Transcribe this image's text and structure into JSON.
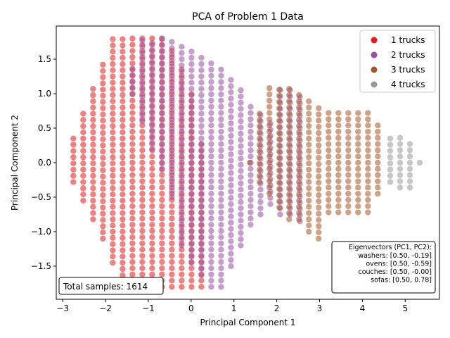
{
  "chart_data": {
    "type": "scatter",
    "title": "PCA of Problem 1 Data",
    "xlabel": "Principal Component 1",
    "ylabel": "Principal Component 2",
    "xlim": [
      -3.15,
      5.8
    ],
    "ylim": [
      -1.98,
      1.98
    ],
    "xticks": [
      "−3",
      "−2",
      "−1",
      "0",
      "1",
      "2",
      "3",
      "4",
      "5"
    ],
    "yticks": [
      "−1.5",
      "−1.0",
      "−0.5",
      "0.0",
      "0.5",
      "1.0",
      "1.5"
    ],
    "grid": false,
    "legend_position": "top-right",
    "alpha": 0.55,
    "series": [
      {
        "name": "1 trucks",
        "color": "#e41a1c",
        "x_range": [
          -2.75,
          0.25
        ],
        "x_step": 0.23,
        "column_y_ranges": [
          [
            -0.28,
            0.36
          ],
          [
            -0.55,
            0.72
          ],
          [
            -0.82,
            1.08
          ],
          [
            -1.1,
            1.45
          ],
          [
            -1.45,
            1.8
          ],
          [
            -1.63,
            1.8
          ],
          [
            -1.8,
            1.8
          ],
          [
            -1.8,
            1.8
          ],
          [
            -1.8,
            1.8
          ],
          [
            -1.8,
            1.8
          ],
          [
            -1.8,
            1.65
          ],
          [
            -1.8,
            1.36
          ],
          [
            -1.8,
            1.0
          ],
          [
            -1.8,
            0.28
          ]
        ]
      },
      {
        "name": "2 trucks",
        "color": "#984ea3",
        "x_range": [
          -1.37,
          2.25
        ],
        "x_step": 0.23,
        "column_y_ranges": [
          [
            1.0,
            1.36
          ],
          [
            0.6,
            1.8
          ],
          [
            0.2,
            1.8
          ],
          [
            -0.1,
            1.8
          ],
          [
            -0.5,
            1.8
          ],
          [
            -1.2,
            1.73
          ],
          [
            -1.45,
            1.65
          ],
          [
            -1.63,
            1.55
          ],
          [
            -1.8,
            1.46
          ],
          [
            -1.8,
            1.36
          ],
          [
            -1.5,
            1.28
          ],
          [
            -1.2,
            1.1
          ],
          [
            -0.9,
            0.82
          ],
          [
            -0.75,
            0.72
          ],
          [
            -0.6,
            0.6
          ],
          [
            -0.75,
            1.08
          ],
          [
            -0.75,
            1.08
          ],
          [
            -0.85,
            1.0
          ]
        ]
      },
      {
        "name": "3 trucks",
        "color": "#a65628",
        "x_range": [
          1.37,
          4.42
        ],
        "x_step": 0.23,
        "column_y_ranges": [
          [
            0.0,
            0.0
          ],
          [
            -0.28,
            0.72
          ],
          [
            -0.45,
            1.08
          ],
          [
            -0.65,
            1.08
          ],
          [
            -0.82,
            1.08
          ],
          [
            -0.82,
            1.0
          ],
          [
            -1.0,
            0.9
          ],
          [
            -1.1,
            0.82
          ],
          [
            -0.72,
            0.72
          ],
          [
            -0.72,
            0.72
          ],
          [
            -0.72,
            0.72
          ],
          [
            -0.72,
            0.72
          ],
          [
            -0.72,
            0.72
          ],
          [
            -0.45,
            0.55
          ]
        ]
      },
      {
        "name": "4 trucks",
        "color": "#999999",
        "x_range": [
          4.65,
          5.35
        ],
        "x_step": 0.23,
        "column_y_ranges": [
          [
            -0.28,
            0.36
          ],
          [
            -0.36,
            0.36
          ],
          [
            -0.36,
            0.28
          ],
          [
            0.0,
            0.0
          ]
        ]
      }
    ],
    "annotations": {
      "total_samples": "Total samples: 1614",
      "eigen_title": "Eigenvectors (PC1, PC2):",
      "eigen_lines": [
        "washers: [0.50, -0.19]",
        "ovens: [0.50, -0.59]",
        "couches: [0.50, -0.00]",
        "sofas: [0.50, 0.78]"
      ]
    }
  }
}
